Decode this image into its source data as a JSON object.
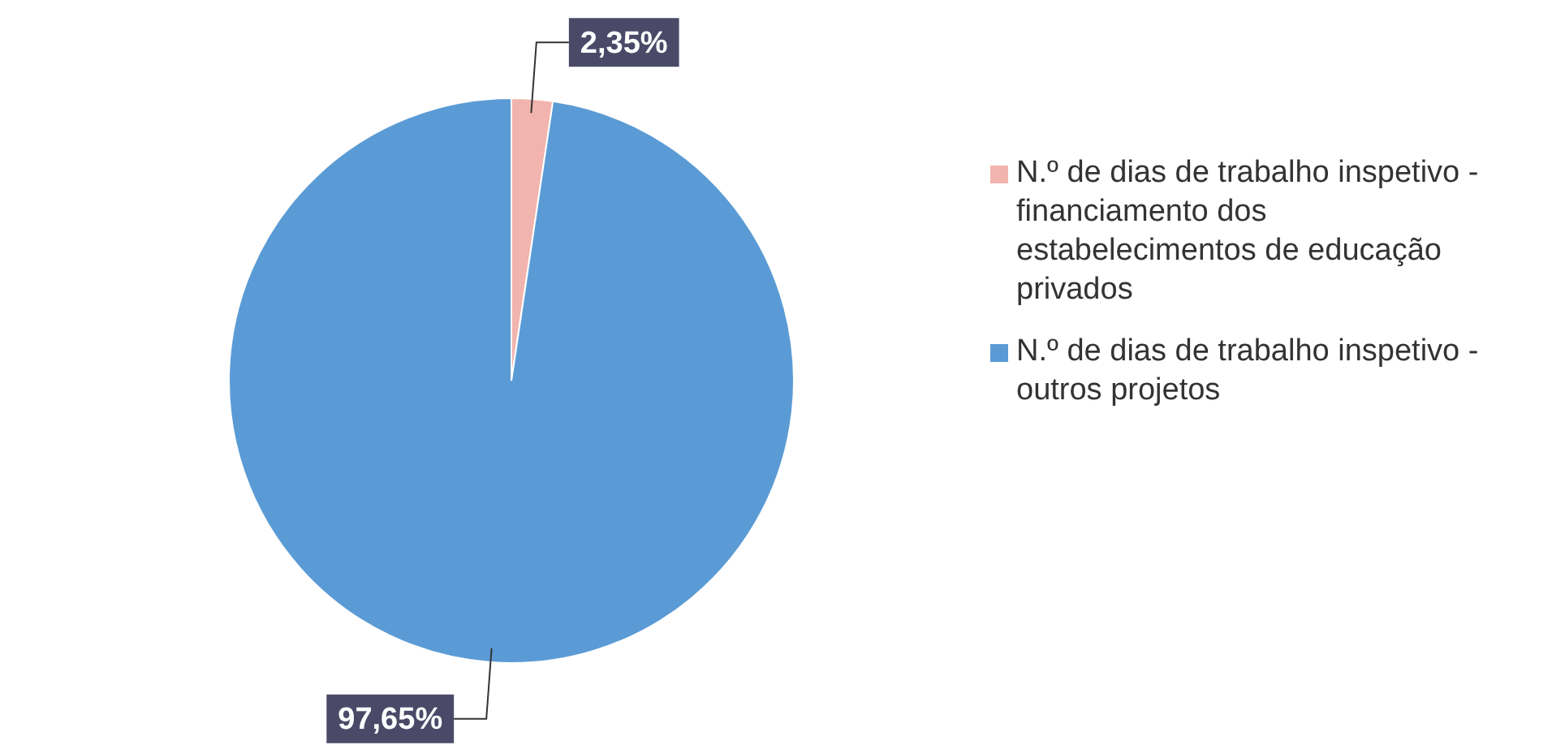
{
  "chart_data": {
    "type": "pie",
    "categories": [
      "N.º de dias de trabalho inspetivo - financiamento dos estabelecimentos de educação privados",
      "N.º de dias de trabalho inspetivo - outros projetos"
    ],
    "values": [
      2.35,
      97.65
    ],
    "colors": [
      "#f2b4ae",
      "#5b9bd5"
    ],
    "value_labels": [
      "2,35%",
      "97,65%"
    ],
    "legend": "right"
  }
}
